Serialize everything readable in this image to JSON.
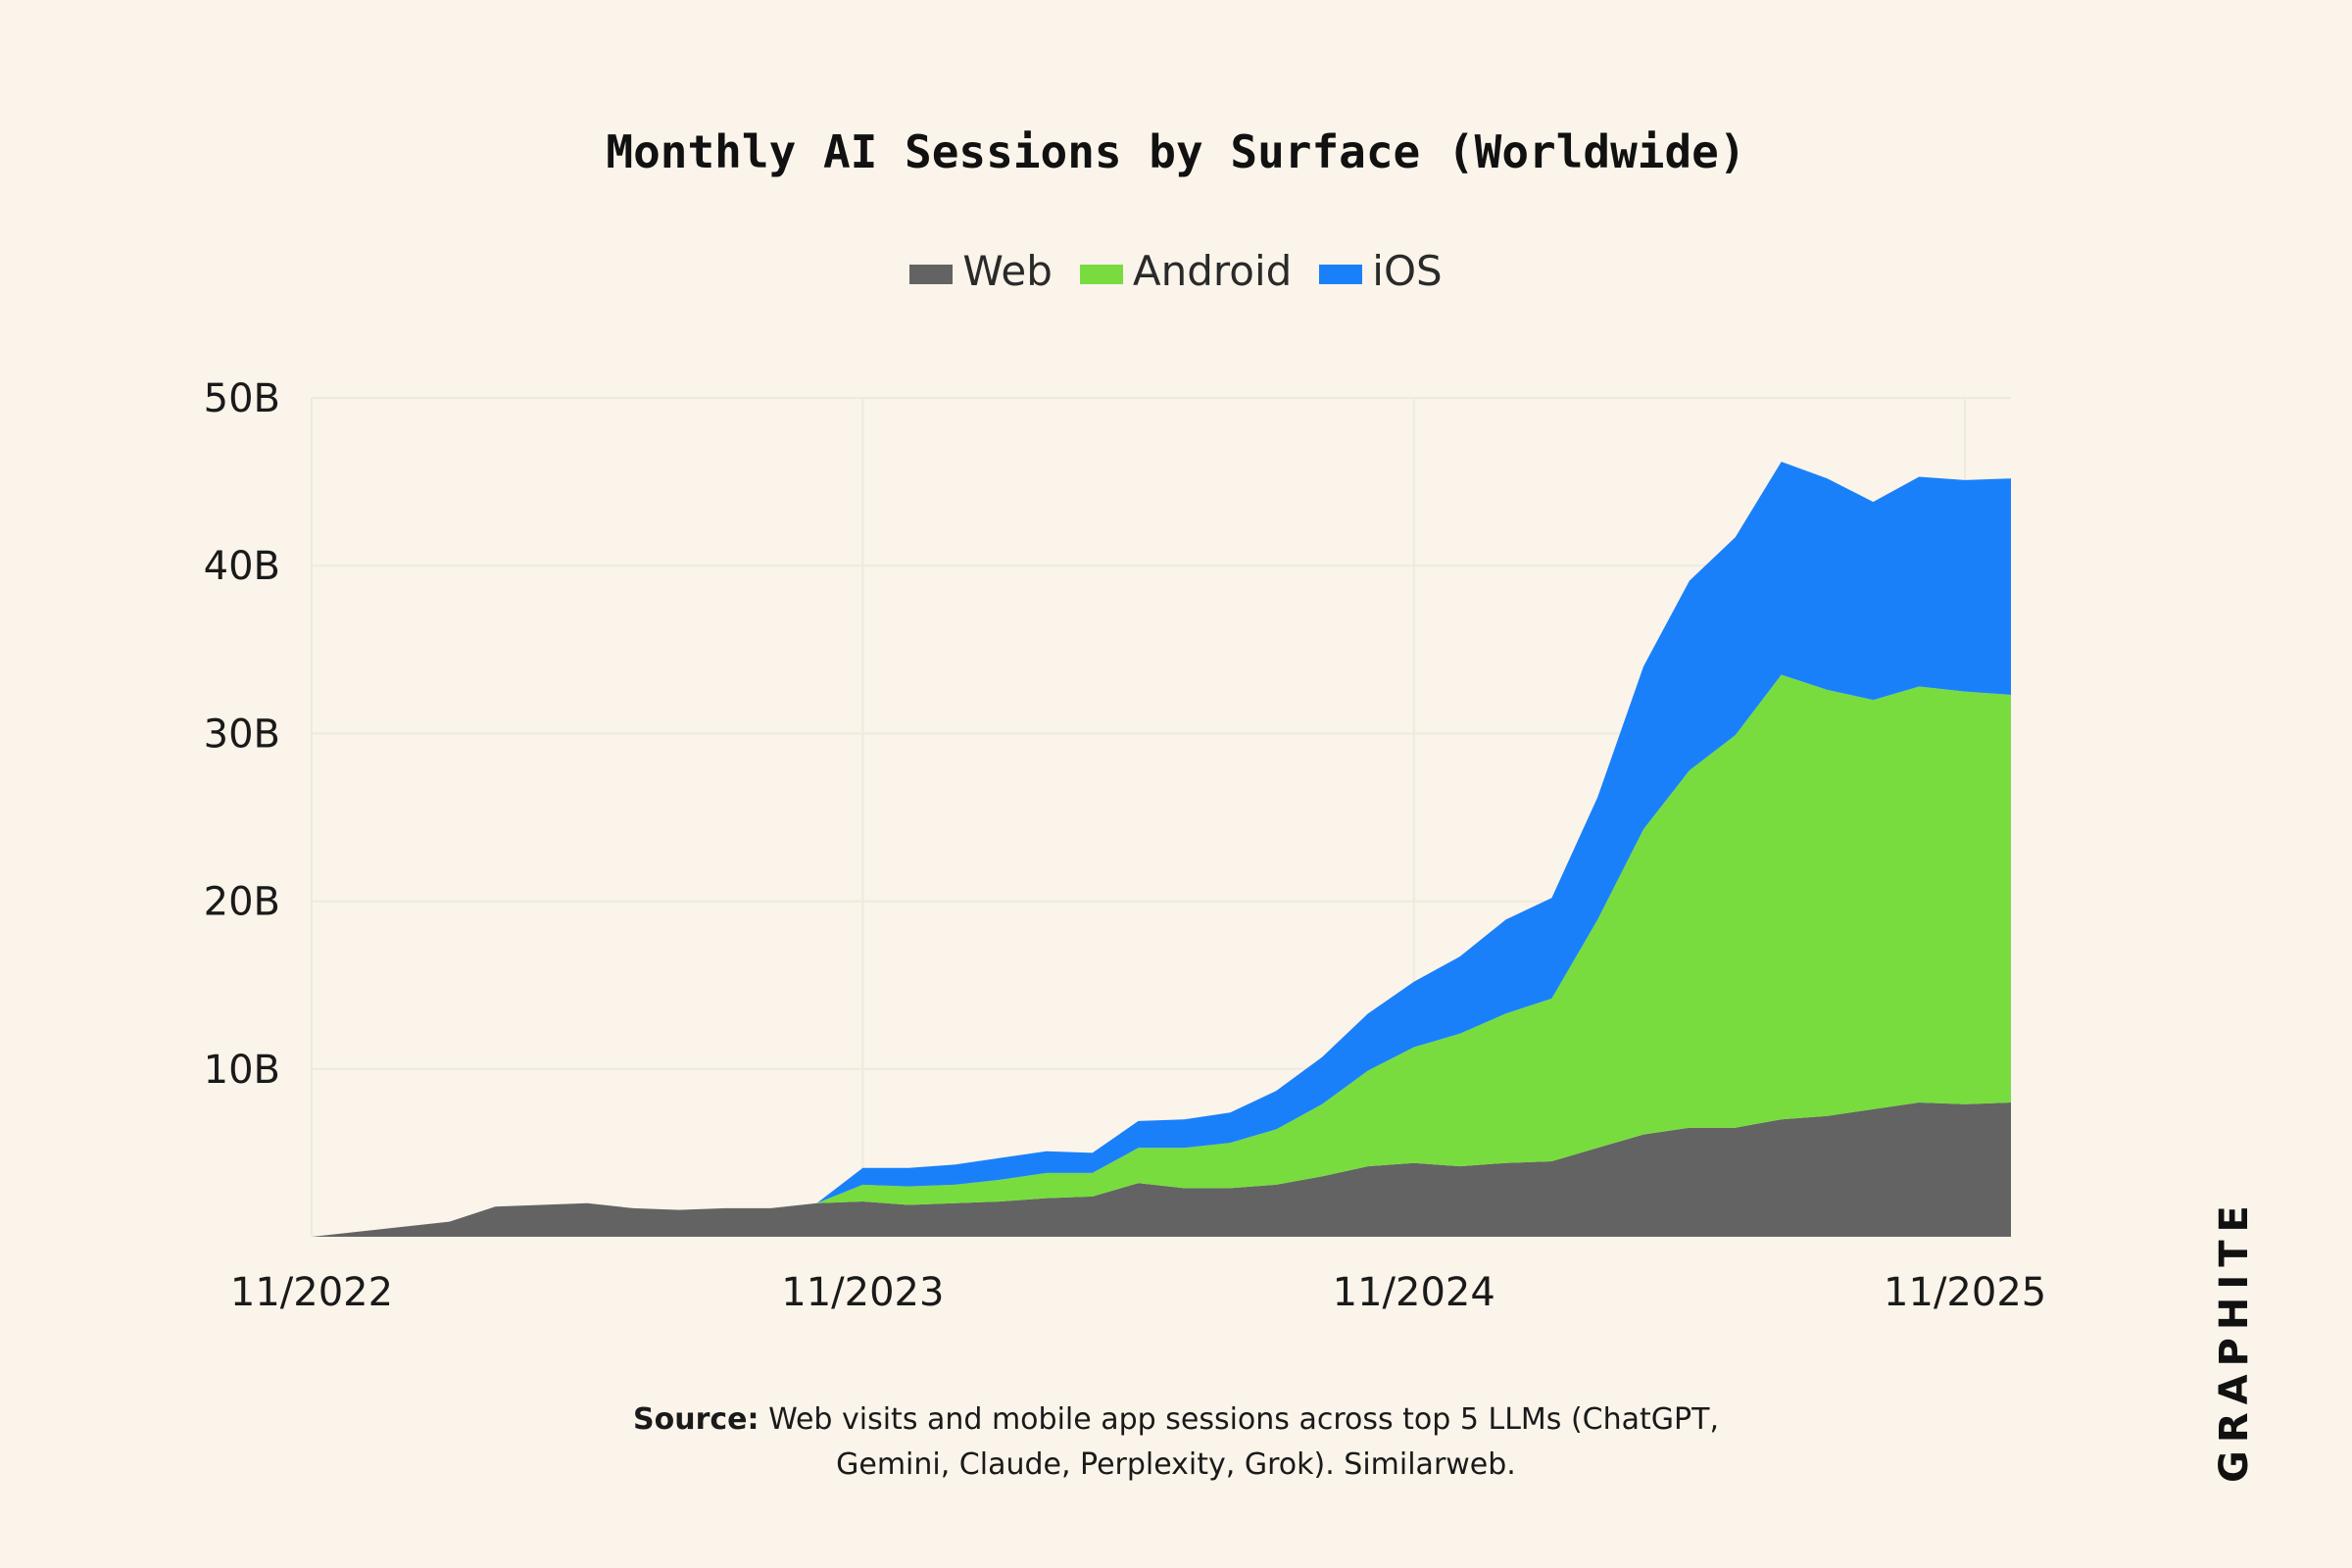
{
  "chart_data": {
    "type": "area",
    "stacked": true,
    "title": "Monthly AI Sessions by Surface (Worldwide)",
    "xlabel": "",
    "ylabel": "",
    "unit": "B",
    "ylim": [
      0,
      50
    ],
    "yticks": [
      {
        "value": 10,
        "label": "10B"
      },
      {
        "value": 20,
        "label": "20B"
      },
      {
        "value": 30,
        "label": "30B"
      },
      {
        "value": 40,
        "label": "40B"
      },
      {
        "value": 50,
        "label": "50B"
      }
    ],
    "xticks": [
      {
        "index": 0,
        "label": "11/2022"
      },
      {
        "index": 12,
        "label": "11/2023"
      },
      {
        "index": 24,
        "label": "11/2024"
      },
      {
        "index": 36,
        "label": "11/2025"
      }
    ],
    "x_start": "11/2022",
    "x_end": "12/2025",
    "legend_position": "top-center",
    "grid": true,
    "series": [
      {
        "name": "Web",
        "color": "#636363",
        "values": [
          0.0,
          0.3,
          0.6,
          0.9,
          1.8,
          1.9,
          2.0,
          1.7,
          1.6,
          1.7,
          1.7,
          2.0,
          2.1,
          1.9,
          2.0,
          2.1,
          2.3,
          2.4,
          3.2,
          2.9,
          2.9,
          3.1,
          3.6,
          4.2,
          4.4,
          4.2,
          4.4,
          4.5,
          5.3,
          6.1,
          6.5,
          6.5,
          7.0,
          7.2,
          7.6,
          8.0,
          7.9,
          8.0
        ]
      },
      {
        "name": "Android",
        "color": "#78DC3F",
        "values": [
          0,
          0,
          0,
          0,
          0,
          0,
          0,
          0,
          0,
          0,
          0,
          0,
          1.0,
          1.1,
          1.1,
          1.3,
          1.5,
          1.4,
          2.1,
          2.4,
          2.7,
          3.3,
          4.3,
          5.7,
          6.9,
          7.9,
          8.9,
          9.7,
          13.6,
          18.2,
          21.3,
          23.4,
          26.5,
          25.4,
          24.4,
          24.8,
          24.6,
          24.3
        ]
      },
      {
        "name": "iOS",
        "color": "#1A80FA",
        "values": [
          0,
          0,
          0,
          0,
          0,
          0,
          0,
          0,
          0,
          0,
          0,
          0,
          1.0,
          1.1,
          1.2,
          1.3,
          1.3,
          1.2,
          1.6,
          1.7,
          1.8,
          2.3,
          2.8,
          3.4,
          3.9,
          4.6,
          5.6,
          6.0,
          7.3,
          9.7,
          11.3,
          11.8,
          12.7,
          12.6,
          11.8,
          12.5,
          12.6,
          12.9
        ]
      }
    ]
  },
  "legend": {
    "web": "Web",
    "android": "Android",
    "ios": "iOS"
  },
  "source": {
    "label": "Source:",
    "text": "Web visits and mobile app sessions across top 5 LLMs (ChatGPT,",
    "text2": "Gemini, Claude, Perplexity, Grok). Similarweb."
  },
  "brand": "GRAPHITE"
}
